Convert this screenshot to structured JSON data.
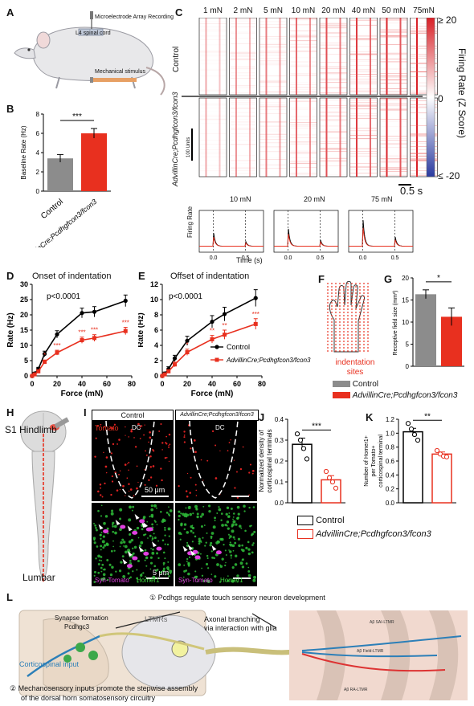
{
  "panel_letters": [
    "A",
    "B",
    "C",
    "D",
    "E",
    "F",
    "G",
    "H",
    "I",
    "J",
    "K",
    "L"
  ],
  "panelA": {
    "mea_label": "Microelectrode Array Recording",
    "spinal_label": "L4 spinal cord",
    "stim_label": "Mechanical stimulus"
  },
  "panelB": {
    "chart_data": {
      "type": "bar",
      "categories": [
        "Control",
        "AdvillinCre;Pcdhgfcon3/fcon3"
      ],
      "values": [
        3.4,
        6.0
      ],
      "errors": [
        0.4,
        0.5
      ],
      "ylabel": "Baseline Rate (Hz)",
      "ylim": [
        0,
        8
      ],
      "yticks": [
        0,
        2,
        4,
        6,
        8
      ],
      "colors": [
        "#8c8c8c",
        "#e8301f"
      ],
      "significance": "***"
    }
  },
  "panelC": {
    "force_labels": [
      "1 mN",
      "2 mN",
      "5 mN",
      "10 mN",
      "20 mN",
      "40 mN",
      "50 mN",
      "75mN"
    ],
    "row_labels": [
      "Control",
      "AdvillinCre;Pcdhgfcon3/fcon3"
    ],
    "units_scale_label": "100 Units",
    "colorbar": {
      "title": "Firing Rate (Z Score)",
      "ticks": [
        "≥ 20",
        "0",
        "≤ -20"
      ],
      "colors": [
        "#d81f26",
        "#ffffff",
        "#2b3aa0"
      ]
    },
    "time_scale_label": "0.5 s",
    "traces": {
      "titles": [
        "10 mN",
        "20 mN",
        "75 mN"
      ],
      "ylabel": "Firing Rate",
      "xlabel": "Time (s)",
      "xticks": [
        "0.0",
        "0.5"
      ]
    }
  },
  "panelD": {
    "title": "Onset of indentation",
    "pvalue": "p<0.0001",
    "chart_data": {
      "type": "line",
      "x": [
        0,
        2,
        5,
        10,
        20,
        40,
        50,
        75
      ],
      "series": [
        {
          "name": "Control",
          "values": [
            0,
            0.8,
            2.3,
            7.2,
            13.6,
            20.6,
            21.0,
            24.6
          ],
          "color": "#000000",
          "errors": [
            0.3,
            0.4,
            0.5,
            0.9,
            1.2,
            1.6,
            1.7,
            1.9
          ]
        },
        {
          "name": "AdvillinCre;Pcdhgfcon3/fcon3",
          "values": [
            0,
            0.5,
            1.5,
            4.6,
            7.6,
            11.7,
            12.4,
            14.7
          ],
          "color": "#e8301f",
          "errors": [
            0.2,
            0.3,
            0.4,
            0.6,
            0.8,
            1.0,
            1.1,
            1.2
          ]
        }
      ],
      "xlabel": "Force (mN)",
      "ylabel": "Rate (Hz)",
      "xlim": [
        0,
        80
      ],
      "ylim": [
        0,
        30
      ],
      "xticks": [
        0,
        20,
        40,
        60,
        80
      ],
      "yticks": [
        0,
        5,
        10,
        15,
        20,
        25,
        30
      ],
      "stars": [
        {
          "x": 10,
          "label": "*"
        },
        {
          "x": 20,
          "label": "***"
        },
        {
          "x": 40,
          "label": "***"
        },
        {
          "x": 50,
          "label": "***"
        },
        {
          "x": 75,
          "label": "***"
        }
      ]
    }
  },
  "panelE": {
    "title": "Offset of indentation",
    "pvalue": "p<0.0001",
    "chart_data": {
      "type": "line",
      "x": [
        0,
        2,
        5,
        10,
        20,
        40,
        50,
        75
      ],
      "series": [
        {
          "name": "Control",
          "values": [
            0,
            0.3,
            0.9,
            2.3,
            4.6,
            7.1,
            8.1,
            10.2
          ],
          "color": "#000000",
          "errors": [
            0.1,
            0.2,
            0.3,
            0.4,
            0.6,
            0.8,
            0.9,
            1.1
          ]
        },
        {
          "name": "AdvillinCre;Pcdhgfcon3/fcon3",
          "values": [
            0,
            0.2,
            0.6,
            1.5,
            3.1,
            4.8,
            5.4,
            6.8
          ],
          "color": "#e8301f",
          "errors": [
            0.1,
            0.1,
            0.2,
            0.3,
            0.4,
            0.5,
            0.6,
            0.7
          ]
        }
      ],
      "xlabel": "Force (mN)",
      "ylabel": "Rate (Hz)",
      "xlim": [
        0,
        80
      ],
      "ylim": [
        0,
        12
      ],
      "xticks": [
        0,
        20,
        40,
        60,
        80
      ],
      "yticks": [
        0,
        2,
        4,
        6,
        8,
        10,
        12
      ],
      "stars": [
        {
          "x": 20,
          "label": "*"
        },
        {
          "x": 40,
          "label": "**"
        },
        {
          "x": 50,
          "label": "**"
        },
        {
          "x": 75,
          "label": "***"
        }
      ]
    },
    "legend": [
      "Control",
      "AdvillinCre;Pcdhgfcon3/fcon3"
    ]
  },
  "panelF": {
    "label": "indentation sites"
  },
  "panelG": {
    "chart_data": {
      "type": "bar",
      "categories": [
        "Control",
        "AdvillinCre;Pcdhgfcon3/fcon3"
      ],
      "values": [
        16.3,
        11.2
      ],
      "errors": [
        1.0,
        2.0
      ],
      "ylabel": "Receptive field size (mm²)",
      "ylim": [
        0,
        20
      ],
      "yticks": [
        0,
        5,
        10,
        15,
        20
      ],
      "colors": [
        "#8c8c8c",
        "#e8301f"
      ],
      "significance": "*"
    },
    "legend": [
      "Control",
      "AdvillinCre;Pcdhgfcon3/fcon3"
    ]
  },
  "panelH": {
    "s1_label": "S1 Hindlimb",
    "lumbar_label": "Lumbar"
  },
  "panelI": {
    "headers": [
      "Control",
      "AdvillinCre;Pcdhgfcon3/fcon3"
    ],
    "tomato_label": "Tomato",
    "dc_label": "DC",
    "scale_top": "50 μm",
    "scale_bottom": "5 μm",
    "syn_label": "Syn-Tomato",
    "homer_label": "Homer1"
  },
  "panelJ": {
    "chart_data": {
      "type": "bar",
      "categories": [
        "Control",
        "AdvillinCre;Pcdhgfcon3/fcon3"
      ],
      "values": [
        0.28,
        0.11
      ],
      "errors": [
        0.03,
        0.02
      ],
      "points": [
        [
          0.33,
          0.3,
          0.26,
          0.21
        ],
        [
          0.15,
          0.12,
          0.1,
          0.07
        ]
      ],
      "ylabel": "Normalized density of corticospinal terminals",
      "ylim": [
        0,
        0.4
      ],
      "yticks": [
        0.0,
        0.1,
        0.2,
        0.3,
        0.4
      ],
      "colors": [
        "#000000",
        "#e8301f"
      ],
      "significance": "***"
    }
  },
  "panelK": {
    "chart_data": {
      "type": "bar",
      "categories": [
        "Control",
        "AdvillinCre;Pcdhgfcon3/fcon3"
      ],
      "values": [
        1.02,
        0.7
      ],
      "errors": [
        0.05,
        0.03
      ],
      "points": [
        [
          1.14,
          1.06,
          0.98,
          0.9
        ],
        [
          0.75,
          0.7,
          0.67,
          0.66
        ]
      ],
      "ylabel": "Number of Homer1+ per Tomato+ corticospinal terminal",
      "ylim": [
        0,
        1.2
      ],
      "yticks": [
        0.0,
        0.2,
        0.4,
        0.6,
        0.8,
        1.0,
        1.2
      ],
      "colors": [
        "#000000",
        "#e8301f"
      ],
      "significance": "**"
    },
    "legend": [
      "Control",
      "AdvillinCre;Pcdhgfcon3/fcon3"
    ]
  },
  "panelL": {
    "point1": "① Pcdhgs regulate touch sensory neuron development",
    "point2": "② Mechanosensory inputs promote the stepwise assembly",
    "point2b": "of the dorsal horn somatosensory circuitry",
    "synapse": "Synapse formation",
    "pcdhgc3": "Pcdhgc3",
    "ltmrs": "LTMRs",
    "axonal": "Axonal branching",
    "glia": "via interaction with glia",
    "corticospinal": "Corticospinal input",
    "sai": "Aβ SAI-LTMR",
    "field": "Aβ Field-LTMR",
    "ra": "Aβ RA-LTMR"
  }
}
